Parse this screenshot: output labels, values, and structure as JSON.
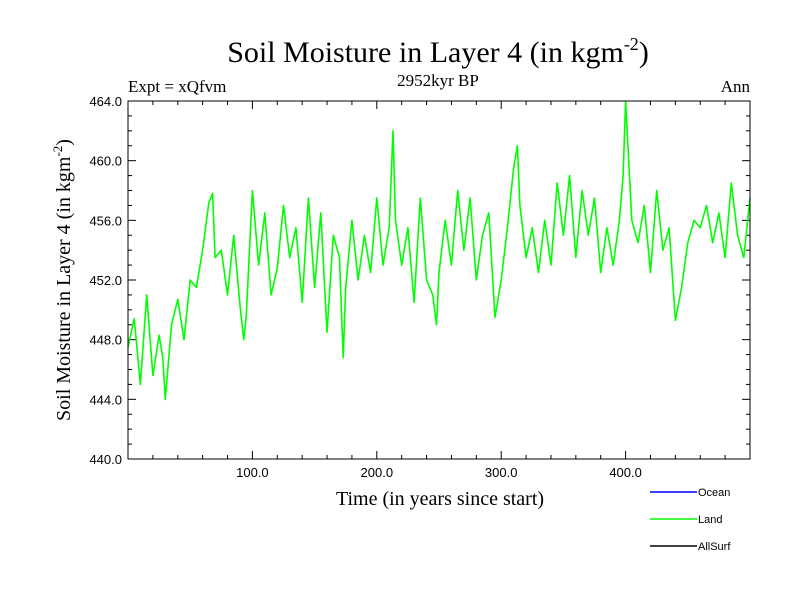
{
  "title_text": "Soil Moisture in Layer 4 (in kgm",
  "title_sup": "-2",
  "title_close": ")",
  "expt_label": "Expt = xQfvm",
  "subtitle": "2952kyr BP",
  "season": "Ann",
  "ylabel_text": "Soil Moisture in Layer 4 (in kgm",
  "ylabel_sup": "-2",
  "ylabel_close": ")",
  "xlabel": "Time (in years since start)",
  "legend": [
    {
      "name": "Ocean",
      "color": "#0000ff"
    },
    {
      "name": "Land",
      "color": "#00ff00"
    },
    {
      "name": "AllSurf",
      "color": "#000000"
    }
  ],
  "chart_data": {
    "type": "line",
    "title": "Soil Moisture in Layer 4 (in kgm-2)",
    "xlabel": "Time (in years since start)",
    "ylabel": "Soil Moisture in Layer 4 (in kgm-2)",
    "xlim": [
      0,
      500
    ],
    "ylim": [
      440,
      464
    ],
    "xticks": [
      100,
      200,
      300,
      400
    ],
    "xtick_labels": [
      "100.0",
      "200.0",
      "300.0",
      "400.0"
    ],
    "yticks": [
      440,
      444,
      448,
      452,
      456,
      460,
      464
    ],
    "ytick_labels": [
      "440.0",
      "444.0",
      "448.0",
      "452.0",
      "456.0",
      "460.0",
      "464.0"
    ],
    "series": [
      {
        "name": "Land",
        "color": "#00ff00",
        "x": [
          0,
          5,
          10,
          15,
          20,
          25,
          28,
          30,
          35,
          40,
          45,
          50,
          55,
          60,
          65,
          68,
          70,
          75,
          80,
          85,
          90,
          93,
          95,
          100,
          105,
          110,
          115,
          120,
          125,
          130,
          135,
          140,
          145,
          150,
          155,
          160,
          165,
          170,
          173,
          175,
          180,
          185,
          190,
          195,
          200,
          205,
          210,
          213,
          215,
          220,
          225,
          230,
          235,
          240,
          245,
          248,
          250,
          255,
          260,
          265,
          270,
          275,
          280,
          285,
          290,
          295,
          300,
          305,
          310,
          313,
          315,
          320,
          325,
          330,
          335,
          340,
          345,
          350,
          355,
          360,
          365,
          370,
          375,
          380,
          385,
          390,
          395,
          398,
          400,
          405,
          410,
          415,
          420,
          425,
          430,
          435,
          440,
          445,
          450,
          455,
          460,
          465,
          470,
          475,
          480,
          485,
          490,
          495,
          500
        ],
        "values": [
          447.5,
          449.4,
          445.0,
          451.0,
          445.6,
          448.3,
          446.8,
          444.0,
          449.0,
          450.7,
          448.0,
          452.0,
          451.5,
          454.0,
          457.2,
          457.8,
          453.5,
          454.0,
          451.0,
          455.0,
          450.3,
          448.0,
          449.5,
          458.0,
          453.0,
          456.5,
          451.0,
          452.8,
          457.0,
          453.5,
          455.5,
          450.5,
          457.5,
          451.5,
          456.5,
          448.5,
          455.0,
          453.5,
          446.8,
          451.5,
          456.0,
          452.0,
          455.0,
          452.5,
          457.5,
          453.0,
          455.5,
          462.0,
          456.0,
          453.0,
          455.5,
          450.5,
          457.5,
          452.0,
          451.0,
          449.0,
          452.5,
          456.0,
          453.0,
          458.0,
          454.0,
          457.5,
          452.0,
          455.0,
          456.5,
          449.5,
          452.0,
          455.5,
          459.5,
          461.0,
          457.0,
          453.5,
          455.5,
          452.5,
          456.0,
          453.0,
          458.5,
          455.0,
          459.0,
          453.5,
          458.0,
          455.0,
          457.5,
          452.5,
          455.5,
          453.0,
          456.0,
          459.0,
          464.0,
          456.0,
          454.5,
          457.0,
          452.5,
          458.0,
          454.0,
          455.5,
          449.3,
          451.5,
          454.5,
          456.0,
          455.5,
          457.0,
          454.5,
          456.5,
          453.5,
          458.5,
          455.0,
          453.5,
          457.5
        ]
      }
    ]
  }
}
